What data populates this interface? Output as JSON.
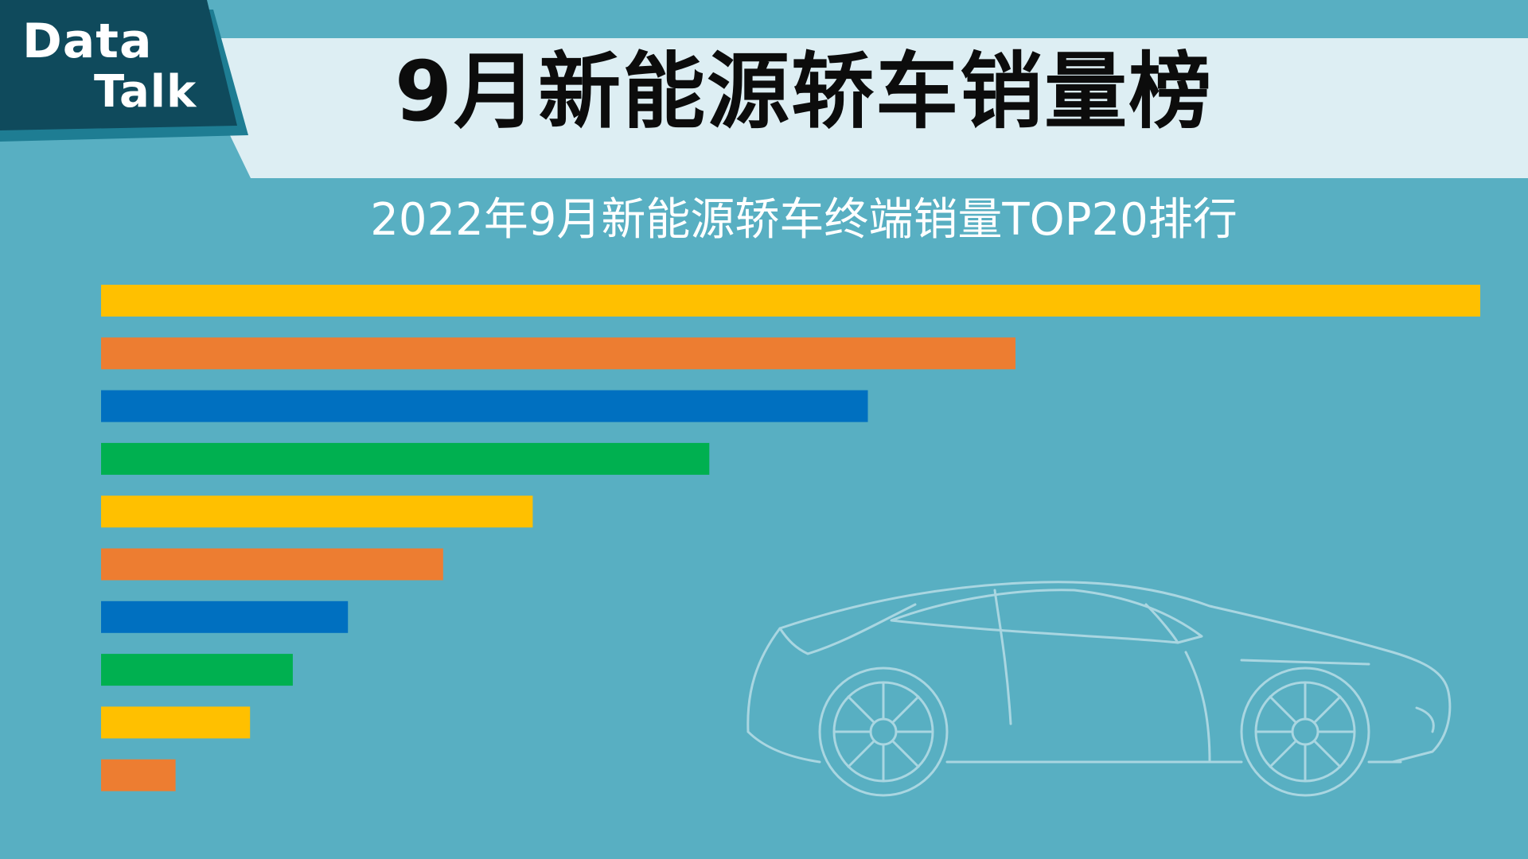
{
  "badge": {
    "line1": "Data",
    "line2": "Talk"
  },
  "colors": {
    "background": "#58afc2",
    "banner": "#ddeef3",
    "badge_dark": "#0f4a5c",
    "badge_stripe": "#1e7d93"
  },
  "chart_data": {
    "type": "bar",
    "orientation": "horizontal",
    "title": "9月新能源轿车销量榜",
    "subtitle": "2022年9月新能源轿车终端销量TOP20排行",
    "xlabel": "",
    "ylabel": "",
    "grid": false,
    "values": [
      100,
      66.3,
      55.6,
      44.1,
      31.3,
      24.8,
      17.9,
      13.9,
      10.8,
      5.4
    ],
    "colors": [
      "#ffc000",
      "#ed7d31",
      "#0070c0",
      "#00b050",
      "#ffc000",
      "#ed7d31",
      "#0070c0",
      "#00b050",
      "#ffc000",
      "#ed7d31"
    ]
  }
}
